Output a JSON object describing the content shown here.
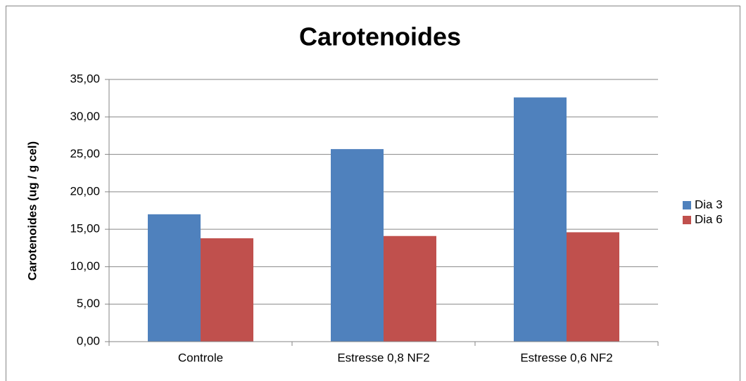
{
  "chart_data": {
    "type": "bar",
    "title": "Carotenoides",
    "y_label": "Carotenoides (ug / g cel)",
    "categories": [
      "Controle",
      "Estresse 0,8 NF2",
      "Estresse 0,6 NF2"
    ],
    "series": [
      {
        "name": "Dia 3",
        "color": "#4f81bd",
        "values": [
          17.0,
          25.7,
          32.6
        ]
      },
      {
        "name": "Dia 6",
        "color": "#c0504d",
        "values": [
          13.8,
          14.1,
          14.6
        ]
      }
    ],
    "ylim": [
      0,
      35
    ],
    "yticks": [
      {
        "value": 0,
        "label": "0,00"
      },
      {
        "value": 5,
        "label": "5,00"
      },
      {
        "value": 10,
        "label": "10,00"
      },
      {
        "value": 15,
        "label": "15,00"
      },
      {
        "value": 20,
        "label": "20,00"
      },
      {
        "value": 25,
        "label": "25,00"
      },
      {
        "value": 30,
        "label": "30,00"
      },
      {
        "value": 35,
        "label": "35,00"
      }
    ],
    "grid": true,
    "legend": "right"
  }
}
